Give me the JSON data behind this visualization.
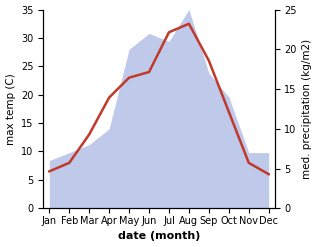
{
  "months": [
    "Jan",
    "Feb",
    "Mar",
    "Apr",
    "May",
    "Jun",
    "Jul",
    "Aug",
    "Sep",
    "Oct",
    "Nov",
    "Dec"
  ],
  "temperature": [
    6.5,
    8,
    13,
    19.5,
    23,
    24,
    31,
    32.5,
    26,
    17,
    8,
    6
  ],
  "precipitation": [
    6,
    7,
    8,
    10,
    20,
    22,
    21,
    25,
    17,
    14,
    7,
    7
  ],
  "temp_color": "#c0392b",
  "precip_fill_color": "#b8c4e8",
  "ylabel_left": "max temp (C)",
  "ylabel_right": "med. precipitation (kg/m2)",
  "xlabel": "date (month)",
  "ylim_left": [
    0,
    35
  ],
  "ylim_right": [
    0,
    25
  ],
  "yticks_left": [
    0,
    5,
    10,
    15,
    20,
    25,
    30,
    35
  ],
  "yticks_right": [
    0,
    5,
    10,
    15,
    20,
    25
  ],
  "temp_linewidth": 1.8,
  "xlabel_fontsize": 8,
  "ylabel_fontsize": 7.5,
  "tick_fontsize": 7
}
